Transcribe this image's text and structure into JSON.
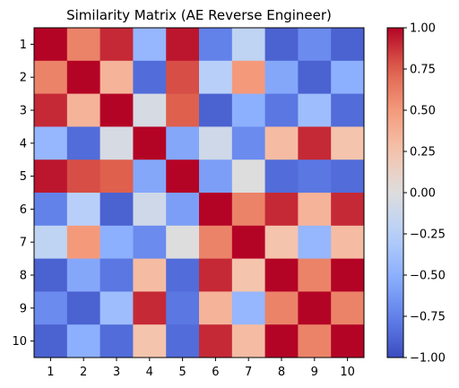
{
  "chart_data": {
    "type": "heatmap",
    "title": "Similarity Matrix (AE Reverse Engineer)",
    "xlabel": "",
    "ylabel": "",
    "x_labels": [
      "1",
      "2",
      "3",
      "4",
      "5",
      "6",
      "7",
      "8",
      "9",
      "10"
    ],
    "y_labels": [
      "1",
      "2",
      "3",
      "4",
      "5",
      "6",
      "7",
      "8",
      "9",
      "10"
    ],
    "colormap": "coolwarm",
    "vmin": -1.0,
    "vmax": 1.0,
    "colorbar_ticks": [
      1.0,
      0.75,
      0.5,
      0.25,
      0.0,
      -0.25,
      -0.5,
      -0.75,
      -1.0
    ],
    "colorbar_tick_labels": [
      "1.00",
      "0.75",
      "0.50",
      "0.25",
      "0.00",
      "−0.25",
      "−0.50",
      "−0.75",
      "−1.00"
    ],
    "values": [
      [
        1.0,
        0.6,
        0.9,
        -0.45,
        0.95,
        -0.75,
        -0.2,
        -0.9,
        -0.7,
        -0.9
      ],
      [
        0.6,
        1.0,
        0.35,
        -0.85,
        0.8,
        -0.25,
        0.5,
        -0.55,
        -0.9,
        -0.5
      ],
      [
        0.9,
        0.35,
        1.0,
        -0.05,
        0.75,
        -0.9,
        -0.5,
        -0.8,
        -0.4,
        -0.85
      ],
      [
        -0.45,
        -0.85,
        -0.05,
        1.0,
        -0.55,
        -0.1,
        -0.7,
        0.3,
        0.9,
        0.25
      ],
      [
        0.95,
        0.8,
        0.75,
        -0.55,
        1.0,
        -0.6,
        0.0,
        -0.85,
        -0.8,
        -0.85
      ],
      [
        -0.75,
        -0.25,
        -0.9,
        -0.1,
        -0.6,
        1.0,
        0.6,
        0.9,
        0.35,
        0.9
      ],
      [
        -0.2,
        0.5,
        -0.5,
        -0.7,
        0.0,
        0.6,
        1.0,
        0.25,
        -0.45,
        0.3
      ],
      [
        -0.9,
        -0.55,
        -0.8,
        0.3,
        -0.85,
        0.9,
        0.25,
        1.0,
        0.6,
        1.0
      ],
      [
        -0.7,
        -0.9,
        -0.4,
        0.9,
        -0.8,
        0.35,
        -0.45,
        0.6,
        1.0,
        0.6
      ],
      [
        -0.9,
        -0.5,
        -0.85,
        0.25,
        -0.85,
        0.9,
        0.3,
        1.0,
        0.6,
        1.0
      ]
    ]
  }
}
